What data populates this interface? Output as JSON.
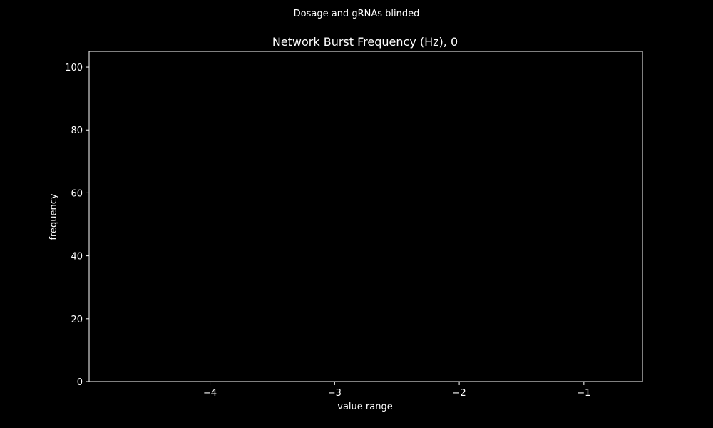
{
  "figure": {
    "suptitle": "Dosage and gRNAs blinded",
    "background_color": "#000000",
    "foreground_color": "#ffffff"
  },
  "chart_data": {
    "type": "bar",
    "title": "Network Burst Frequency (Hz), 0",
    "xlabel": "value range",
    "ylabel": "frequency",
    "xlim": [
      -4.97,
      -0.53
    ],
    "ylim": [
      0,
      105
    ],
    "xticks": [
      -4,
      -3,
      -2,
      -1
    ],
    "xtick_labels": [
      "−4",
      "−3",
      "−2",
      "−1"
    ],
    "yticks": [
      0,
      20,
      40,
      60,
      80,
      100
    ],
    "ytick_labels": [
      "0",
      "20",
      "40",
      "60",
      "80",
      "100"
    ],
    "grid": false,
    "legend": "none",
    "series": [
      {
        "values": []
      }
    ]
  }
}
